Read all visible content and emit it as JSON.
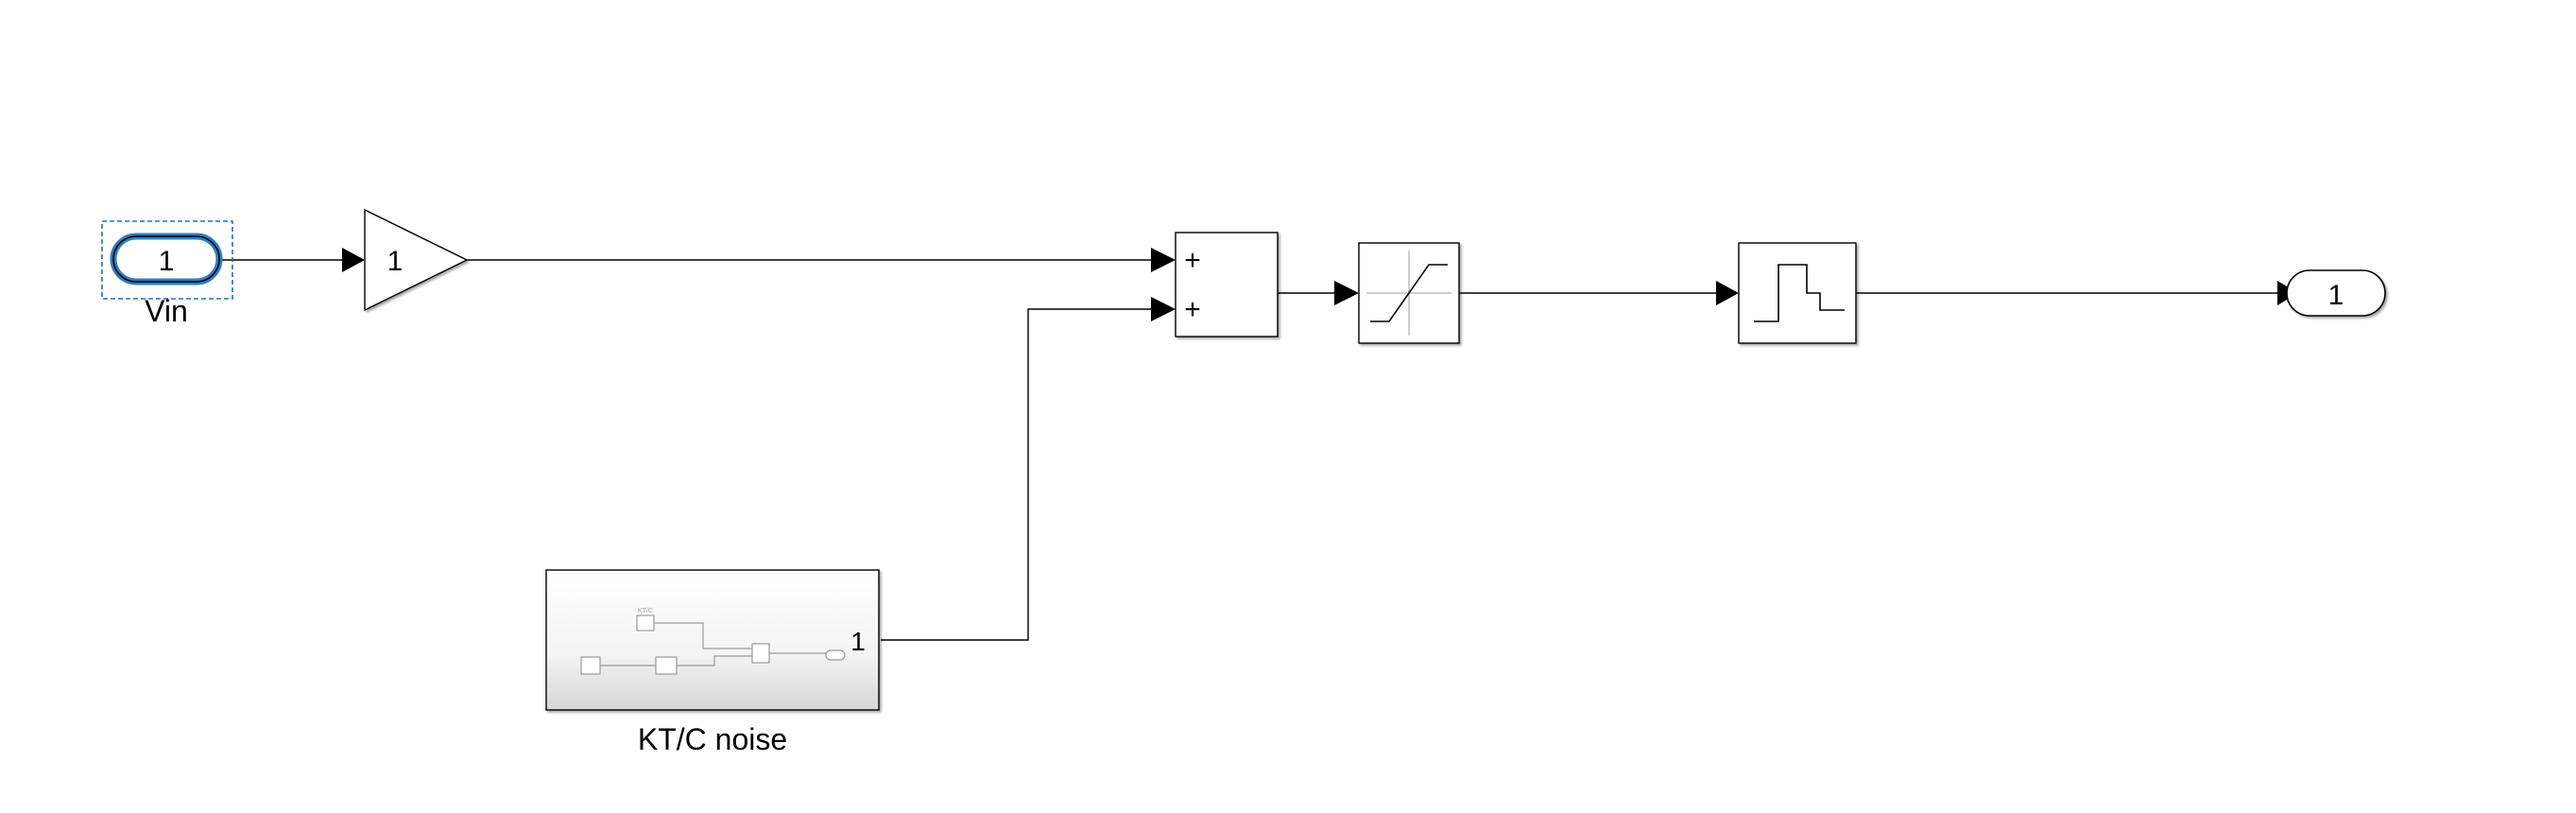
{
  "diagram": {
    "inport": {
      "number": "1",
      "name": "Vin"
    },
    "gain": {
      "value": "1"
    },
    "sum": {
      "signs": [
        "+",
        "+"
      ]
    },
    "saturation": {
      "icon": "saturation-icon"
    },
    "quantizer": {
      "icon": "quantizer-icon"
    },
    "outport": {
      "number": "1"
    },
    "subsystem": {
      "name": "KT/C noise",
      "port_label": "1",
      "thumb_text": "KT/C"
    }
  },
  "colors": {
    "line": "#000000",
    "selection": "#1a73c8",
    "inport_highlight": "#2a7fc4",
    "subsystem_fill_top": "#ffffff",
    "subsystem_fill_bottom": "#d8d8d8",
    "thumbnail_stroke": "#9a9a9a"
  }
}
